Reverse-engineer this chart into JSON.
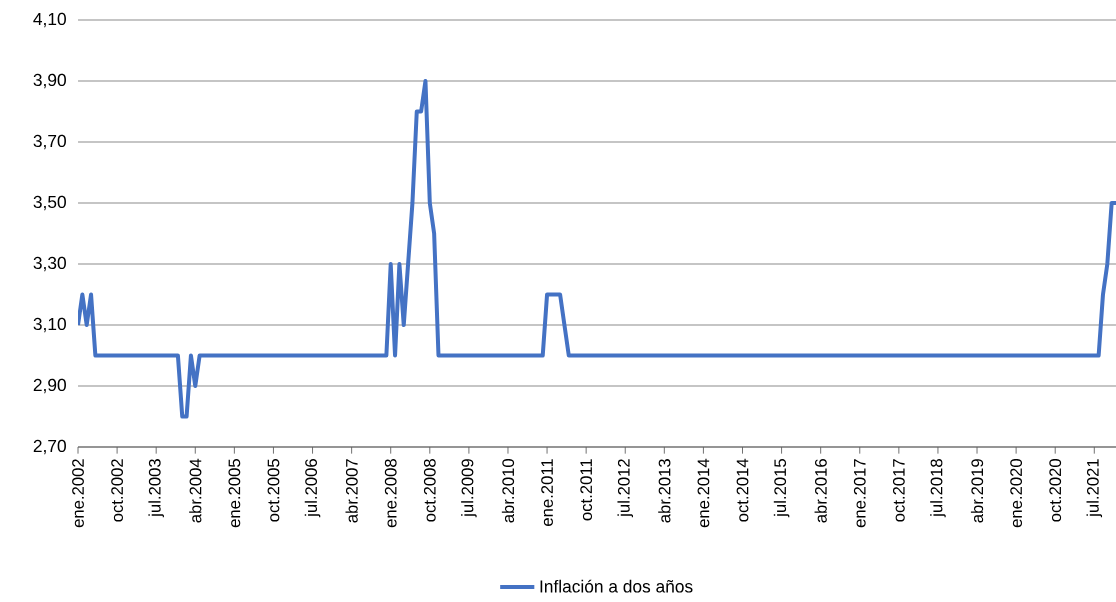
{
  "chart_data": {
    "type": "line",
    "categories": [
      "ene.2002",
      null,
      null,
      null,
      null,
      null,
      null,
      null,
      null,
      "oct.2002",
      null,
      null,
      null,
      null,
      null,
      null,
      null,
      null,
      "jul.2003",
      null,
      null,
      null,
      null,
      null,
      null,
      null,
      null,
      "abr.2004",
      null,
      null,
      null,
      null,
      null,
      null,
      null,
      null,
      "ene.2005",
      null,
      null,
      null,
      null,
      null,
      null,
      null,
      null,
      "oct.2005",
      null,
      null,
      null,
      null,
      null,
      null,
      null,
      null,
      "jul.2006",
      null,
      null,
      null,
      null,
      null,
      null,
      null,
      null,
      "abr.2007",
      null,
      null,
      null,
      null,
      null,
      null,
      null,
      null,
      "ene.2008",
      null,
      null,
      null,
      null,
      null,
      null,
      null,
      null,
      "oct.2008",
      null,
      null,
      null,
      null,
      null,
      null,
      null,
      null,
      "jul.2009",
      null,
      null,
      null,
      null,
      null,
      null,
      null,
      null,
      "abr.2010",
      null,
      null,
      null,
      null,
      null,
      null,
      null,
      null,
      "ene.2011",
      null,
      null,
      null,
      null,
      null,
      null,
      null,
      null,
      "oct.2011",
      null,
      null,
      null,
      null,
      null,
      null,
      null,
      null,
      "jul.2012",
      null,
      null,
      null,
      null,
      null,
      null,
      null,
      null,
      "abr.2013",
      null,
      null,
      null,
      null,
      null,
      null,
      null,
      null,
      "ene.2014",
      null,
      null,
      null,
      null,
      null,
      null,
      null,
      null,
      "oct.2014",
      null,
      null,
      null,
      null,
      null,
      null,
      null,
      null,
      "jul.2015",
      null,
      null,
      null,
      null,
      null,
      null,
      null,
      null,
      "abr.2016",
      null,
      null,
      null,
      null,
      null,
      null,
      null,
      null,
      "ene.2017",
      null,
      null,
      null,
      null,
      null,
      null,
      null,
      null,
      "oct.2017",
      null,
      null,
      null,
      null,
      null,
      null,
      null,
      null,
      "jul.2018",
      null,
      null,
      null,
      null,
      null,
      null,
      null,
      null,
      "abr.2019",
      null,
      null,
      null,
      null,
      null,
      null,
      null,
      null,
      "ene.2020",
      null,
      null,
      null,
      null,
      null,
      null,
      null,
      null,
      "oct.2020",
      null,
      null,
      null,
      null,
      null,
      null,
      null,
      null,
      "jul.2021",
      null,
      null,
      null,
      null,
      null
    ],
    "series": [
      {
        "name": "Inflación a dos años",
        "color": "#4472c4",
        "values": [
          3.1,
          3.2,
          3.1,
          3.2,
          3.0,
          3.0,
          3.0,
          3.0,
          3.0,
          3.0,
          3.0,
          3.0,
          3.0,
          3.0,
          3.0,
          3.0,
          3.0,
          3.0,
          3.0,
          3.0,
          3.0,
          3.0,
          3.0,
          3.0,
          2.8,
          2.8,
          3.0,
          2.9,
          3.0,
          3.0,
          3.0,
          3.0,
          3.0,
          3.0,
          3.0,
          3.0,
          3.0,
          3.0,
          3.0,
          3.0,
          3.0,
          3.0,
          3.0,
          3.0,
          3.0,
          3.0,
          3.0,
          3.0,
          3.0,
          3.0,
          3.0,
          3.0,
          3.0,
          3.0,
          3.0,
          3.0,
          3.0,
          3.0,
          3.0,
          3.0,
          3.0,
          3.0,
          3.0,
          3.0,
          3.0,
          3.0,
          3.0,
          3.0,
          3.0,
          3.0,
          3.0,
          3.0,
          3.3,
          3.0,
          3.3,
          3.1,
          3.3,
          3.5,
          3.8,
          3.8,
          3.9,
          3.5,
          3.4,
          3.0,
          3.0,
          3.0,
          3.0,
          3.0,
          3.0,
          3.0,
          3.0,
          3.0,
          3.0,
          3.0,
          3.0,
          3.0,
          3.0,
          3.0,
          3.0,
          3.0,
          3.0,
          3.0,
          3.0,
          3.0,
          3.0,
          3.0,
          3.0,
          3.0,
          3.2,
          3.2,
          3.2,
          3.2,
          3.1,
          3.0,
          3.0,
          3.0,
          3.0,
          3.0,
          3.0,
          3.0,
          3.0,
          3.0,
          3.0,
          3.0,
          3.0,
          3.0,
          3.0,
          3.0,
          3.0,
          3.0,
          3.0,
          3.0,
          3.0,
          3.0,
          3.0,
          3.0,
          3.0,
          3.0,
          3.0,
          3.0,
          3.0,
          3.0,
          3.0,
          3.0,
          3.0,
          3.0,
          3.0,
          3.0,
          3.0,
          3.0,
          3.0,
          3.0,
          3.0,
          3.0,
          3.0,
          3.0,
          3.0,
          3.0,
          3.0,
          3.0,
          3.0,
          3.0,
          3.0,
          3.0,
          3.0,
          3.0,
          3.0,
          3.0,
          3.0,
          3.0,
          3.0,
          3.0,
          3.0,
          3.0,
          3.0,
          3.0,
          3.0,
          3.0,
          3.0,
          3.0,
          3.0,
          3.0,
          3.0,
          3.0,
          3.0,
          3.0,
          3.0,
          3.0,
          3.0,
          3.0,
          3.0,
          3.0,
          3.0,
          3.0,
          3.0,
          3.0,
          3.0,
          3.0,
          3.0,
          3.0,
          3.0,
          3.0,
          3.0,
          3.0,
          3.0,
          3.0,
          3.0,
          3.0,
          3.0,
          3.0,
          3.0,
          3.0,
          3.0,
          3.0,
          3.0,
          3.0,
          3.0,
          3.0,
          3.0,
          3.0,
          3.0,
          3.0,
          3.0,
          3.0,
          3.0,
          3.0,
          3.0,
          3.0,
          3.0,
          3.0,
          3.0,
          3.0,
          3.0,
          3.0,
          3.0,
          3.0,
          3.2,
          3.3,
          3.5,
          3.5
        ]
      }
    ],
    "ylim": [
      2.7,
      4.1
    ],
    "yticks": [
      {
        "value": 2.7,
        "label": "2,70"
      },
      {
        "value": 2.9,
        "label": "2,90"
      },
      {
        "value": 3.1,
        "label": "3,10"
      },
      {
        "value": 3.3,
        "label": "3,30"
      },
      {
        "value": 3.5,
        "label": "3,50"
      },
      {
        "value": 3.7,
        "label": "3,70"
      },
      {
        "value": 3.9,
        "label": "3,90"
      },
      {
        "value": 4.1,
        "label": "4,10"
      }
    ],
    "grid": "y",
    "legend": "bottom"
  }
}
